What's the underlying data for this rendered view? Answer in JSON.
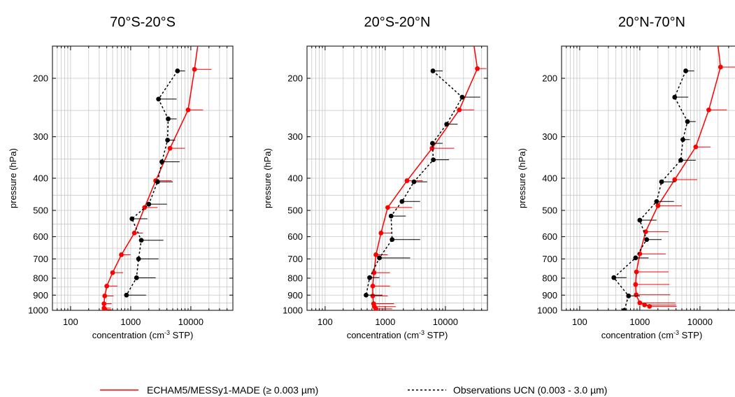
{
  "chart_data": [
    {
      "type": "line",
      "title": "70°S-20°S",
      "xlabel_main": "concentration (cm",
      "xlabel_sup": "-3",
      "xlabel_tail": " STP)",
      "ylabel": "pressure (hPa)",
      "xscale": "log",
      "xlim": [
        50,
        50000
      ],
      "ylim": [
        1000,
        160
      ],
      "yticks": [
        200,
        300,
        400,
        500,
        600,
        700,
        800,
        900,
        1000
      ],
      "xticks": [
        100,
        1000,
        10000
      ],
      "xtick_labels": [
        "100",
        "1000",
        "10000"
      ],
      "grid": true,
      "series": [
        {
          "name": "ECHAM5/MESSy1-MADE (≥ 0.003 µm)",
          "color": "#ff0000",
          "x": [
            13000,
            11500,
            9000,
            4500,
            2600,
            1700,
            1150,
            700,
            500,
            400,
            370,
            360,
            360,
            370
          ],
          "y": [
            160,
            188,
            249,
            325,
            407,
            490,
            585,
            680,
            770,
            845,
            905,
            955,
            985,
            995
          ],
          "xerr_high": [
            null,
            22000,
            16000,
            8000,
            4800,
            2800,
            1600,
            1000,
            750,
            600,
            520,
            480,
            470,
            480
          ]
        },
        {
          "name": "Observations UCN (0.003 - 3.0 µm)",
          "color": "#000000",
          "x": [
            6000,
            2900,
            4200,
            4100,
            3300,
            2800,
            2000,
            1050,
            1500,
            1350,
            1250,
            850
          ],
          "y": [
            190,
            231,
            265,
            307,
            357,
            410,
            479,
            530,
            615,
            700,
            798,
            900
          ],
          "xerr_high": [
            8000,
            5800,
            5800,
            5500,
            6500,
            5000,
            4000,
            1900,
            3500,
            2900,
            2600,
            1800
          ]
        }
      ]
    },
    {
      "type": "line",
      "title": "20°S-20°N",
      "xlabel_main": "concentration (cm",
      "xlabel_sup": "-3",
      "xlabel_tail": " STP)",
      "ylabel": "pressure (hPa)",
      "xscale": "log",
      "xlim": [
        50,
        50000
      ],
      "ylim": [
        1000,
        160
      ],
      "yticks": [
        200,
        300,
        400,
        500,
        600,
        700,
        800,
        900,
        1000
      ],
      "xticks": [
        100,
        1000,
        10000
      ],
      "xtick_labels": [
        "100",
        "1000",
        "10000"
      ],
      "grid": true,
      "series": [
        {
          "name": "ECHAM5/MESSy1-MADE (≥ 0.003 µm)",
          "color": "#ff0000",
          "x": [
            30000,
            34000,
            17000,
            6000,
            2300,
            1100,
            850,
            700,
            650,
            620,
            620,
            640,
            660,
            700
          ],
          "y": [
            160,
            187,
            249,
            325,
            407,
            490,
            585,
            680,
            770,
            845,
            905,
            955,
            975,
            990
          ],
          "xerr_high": [
            null,
            48000,
            30000,
            14000,
            4200,
            2800,
            1300,
            1100,
            1200,
            1200,
            1100,
            1400,
            1500,
            1300
          ]
        },
        {
          "name": "Observations UCN (0.003 - 3.0 µm)",
          "color": "#000000",
          "x": [
            6200,
            19000,
            10500,
            6100,
            6300,
            3000,
            1900,
            1250,
            1300,
            800,
            550,
            480
          ],
          "y": [
            190,
            228,
            275,
            314,
            352,
            410,
            470,
            520,
            612,
            695,
            797,
            900
          ],
          "xerr_high": [
            9000,
            38000,
            16000,
            9000,
            11500,
            5000,
            3800,
            2200,
            3800,
            2600,
            800,
            900
          ]
        }
      ]
    },
    {
      "type": "line",
      "title": "20°N-70°N",
      "xlabel_main": "concentration (cm",
      "xlabel_sup": "-3",
      "xlabel_tail": " STP)",
      "ylabel": "pressure (hPa)",
      "xscale": "log",
      "xlim": [
        50,
        50000
      ],
      "ylim": [
        1000,
        160
      ],
      "yticks": [
        200,
        300,
        400,
        500,
        600,
        700,
        800,
        900,
        1000
      ],
      "xticks": [
        100,
        1000,
        10000
      ],
      "xtick_labels": [
        "100",
        "1000",
        "10000"
      ],
      "grid": true,
      "series": [
        {
          "name": "ECHAM5/MESSy1-MADE (≥ 0.003 µm)",
          "color": "#ff0000",
          "x": [
            20000,
            22000,
            14000,
            8500,
            3800,
            2000,
            1250,
            1000,
            880,
            850,
            870,
            1000,
            1200,
            1450
          ],
          "y": [
            160,
            185,
            249,
            322,
            404,
            484,
            580,
            676,
            766,
            836,
            898,
            950,
            963,
            973
          ],
          "xerr_high": [
            null,
            45000,
            28000,
            15000,
            9000,
            5000,
            3000,
            2700,
            3000,
            3100,
            3200,
            3900,
            4000,
            4100
          ]
        },
        {
          "name": "Observations UCN (0.003 - 3.0 µm)",
          "color": "#000000",
          "x": [
            5800,
            3800,
            6200,
            5200,
            4800,
            2300,
            1900,
            1000,
            1300,
            850,
            370,
            650,
            550
          ],
          "y": [
            190,
            228,
            270,
            306,
            353,
            410,
            470,
            535,
            612,
            695,
            797,
            905,
            1000
          ],
          "xerr_high": [
            8000,
            6400,
            8500,
            6800,
            8500,
            3900,
            3700,
            1900,
            2300,
            1400,
            600,
            1000,
            700
          ]
        }
      ]
    }
  ],
  "legend": {
    "model_label": "ECHAM5/MESSy1-MADE (≥ 0.003 µm)",
    "obs_label": "Observations UCN (0.003 - 3.0 µm)",
    "model_color": "#ff0000",
    "obs_color": "#000000"
  }
}
